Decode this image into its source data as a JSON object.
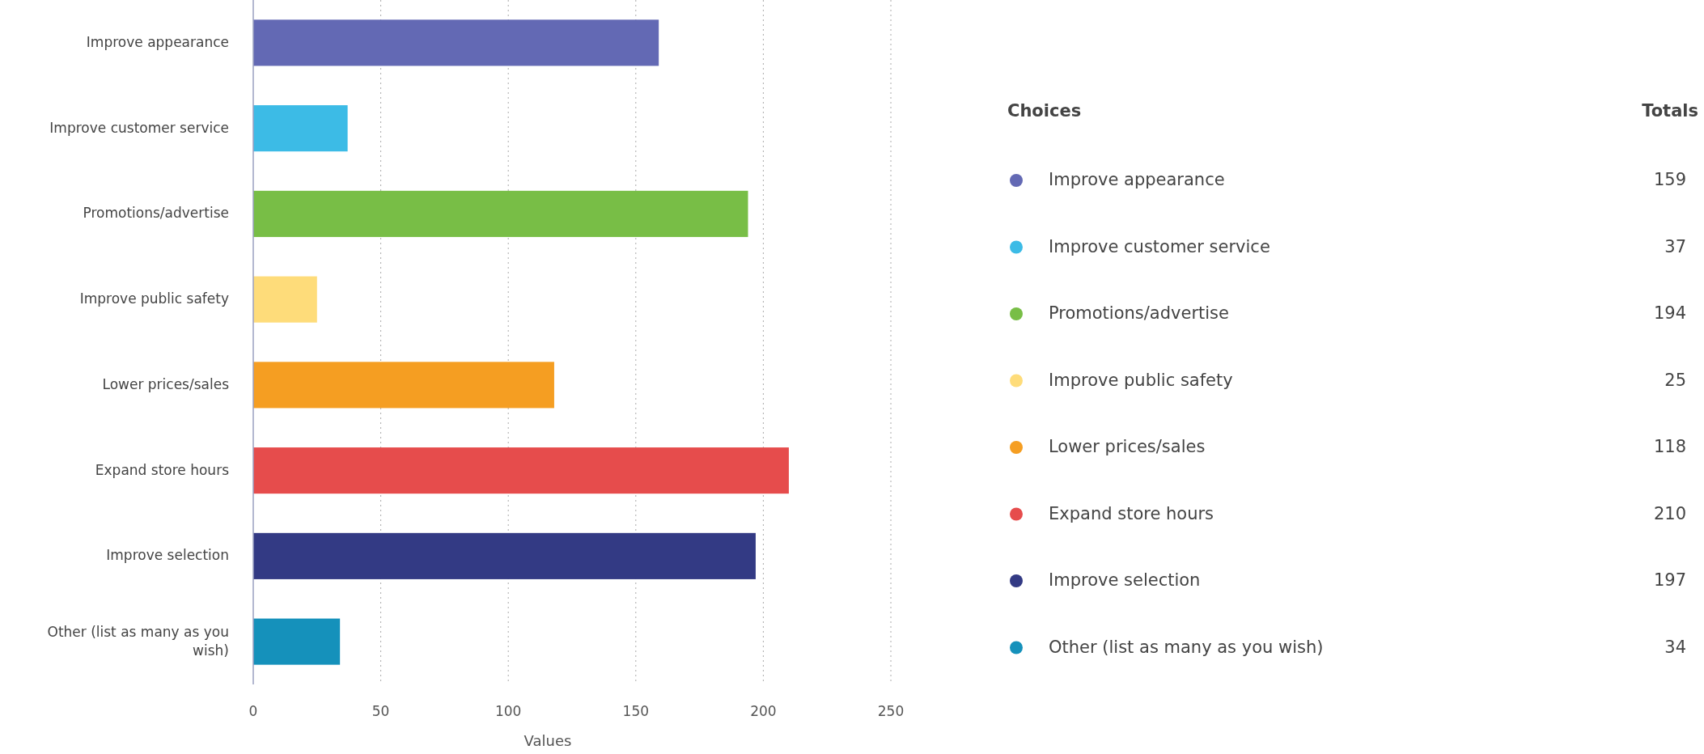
{
  "chart_data": [
    {
      "type": "bar",
      "orientation": "horizontal",
      "xlabel": "Values",
      "grid": "x",
      "categories": [
        "Improve appearance",
        "Improve customer service",
        "Promotions/advertise",
        "Improve public safety",
        "Lower prices/sales",
        "Expand store hours",
        "Improve selection",
        "Other (list as many as you wish)"
      ],
      "values": [
        159,
        37,
        194,
        25,
        118,
        210,
        197,
        34
      ],
      "colors": [
        "#6369b4",
        "#3cbbe6",
        "#78be46",
        "#fedc7a",
        "#f59e22",
        "#e64c4c",
        "#333a84",
        "#1591bb"
      ],
      "xlim": [
        0,
        250
      ],
      "xticks": [
        0,
        50,
        100,
        150,
        200,
        250
      ]
    },
    {
      "type": "other",
      "title": "Choices",
      "data_labels": true,
      "categories": [
        "Improve appearance",
        "Improve customer service",
        "Promotions/advertise",
        "Improve public safety",
        "Lower prices/sales",
        "Expand store hours",
        "Improve selection",
        "Other (list as many as you wish)"
      ],
      "values": [
        159,
        37,
        194,
        25,
        118,
        210,
        197,
        34
      ],
      "colors": [
        "#6369b4",
        "#3cbbe6",
        "#78be46",
        "#fedc7a",
        "#f59e22",
        "#e64c4c",
        "#333a84",
        "#1591bb"
      ],
      "annotations": [
        "Totals"
      ]
    }
  ]
}
